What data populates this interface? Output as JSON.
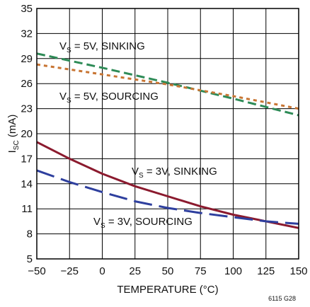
{
  "chart_data": {
    "type": "line",
    "xlabel": "TEMPERATURE (°C)",
    "ylabel_main": "I",
    "ylabel_sub": "SC",
    "ylabel_unit": " (mA)",
    "xlim": [
      -50,
      150
    ],
    "ylim": [
      5,
      35
    ],
    "xticks": [
      -50,
      -25,
      0,
      25,
      50,
      75,
      100,
      125,
      150
    ],
    "xtick_labels": [
      "−50",
      "−25",
      "0",
      "25",
      "50",
      "75",
      "100",
      "125",
      "150"
    ],
    "yticks": [
      5,
      8,
      11,
      14,
      17,
      20,
      23,
      26,
      29,
      32,
      35
    ],
    "ytick_labels": [
      "5",
      "8",
      "11",
      "14",
      "17",
      "20",
      "23",
      "26",
      "29",
      "32",
      "35"
    ],
    "grid": true,
    "figure_id": "6115 G28",
    "series": [
      {
        "label_main": "V",
        "label_sub": "S",
        "label_rest": " = 5V, SINKING",
        "color": "#2e8b57",
        "style": "dashed",
        "x": [
          -50,
          0,
          50,
          100,
          150
        ],
        "y": [
          29.6,
          27.9,
          26.1,
          24.2,
          22.2
        ]
      },
      {
        "label_main": "V",
        "label_sub": "S",
        "label_rest": " = 5V, SOURCING",
        "color": "#c87533",
        "style": "dotted",
        "x": [
          -50,
          0,
          50,
          100,
          150
        ],
        "y": [
          28.3,
          27.1,
          25.9,
          24.5,
          23.0
        ]
      },
      {
        "label_main": "V",
        "label_sub": "S",
        "label_rest": " = 3V, SINKING",
        "color": "#8b1a2e",
        "style": "solid",
        "x": [
          -50,
          -25,
          0,
          25,
          50,
          75,
          100,
          125,
          150
        ],
        "y": [
          19.0,
          17.0,
          15.2,
          13.7,
          12.5,
          11.3,
          10.3,
          9.5,
          8.7
        ]
      },
      {
        "label_main": "V",
        "label_sub": "S",
        "label_rest": " = 3V, SOURCING",
        "color": "#2e3f9e",
        "style": "longdash",
        "x": [
          -50,
          -25,
          0,
          25,
          50,
          75,
          100,
          125,
          150
        ],
        "y": [
          15.6,
          14.2,
          13.0,
          11.9,
          11.1,
          10.5,
          10.0,
          9.5,
          9.2
        ]
      }
    ]
  }
}
